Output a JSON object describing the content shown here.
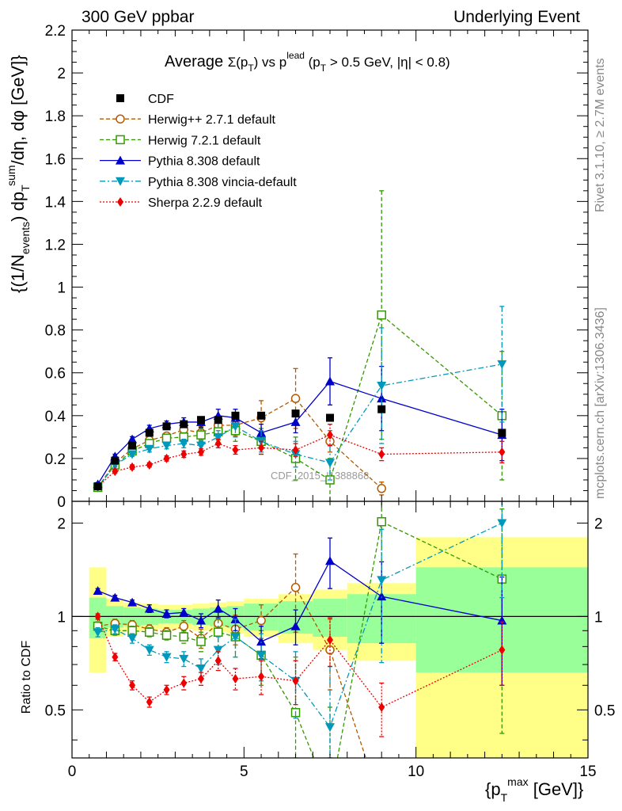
{
  "header": {
    "left": "300 GeV ppbar",
    "right": "Underlying Event"
  },
  "plot_title": {
    "main": "Average Σ(p_T) vs p_T^lead (p_T > 0.5 GeV, |η| < 0.8)",
    "prefix": "Average ",
    "sigma": "Σ(p",
    "sub_t": "T",
    "close": ")",
    "vs": " vs p",
    "sup_lead": "lead",
    "cond_open": " (p",
    "cond_rest": " > 0.5 GeV, |η| < 0.8)"
  },
  "watermark": "CDF_2015_I1388868",
  "side_labels": {
    "rivet": "Rivet 3.1.10, ≥ 2.7M events",
    "mcplots": "mcplots.cern.ch [arXiv:1306.3436]"
  },
  "axis_text": {
    "y_top": "{(1/N_events) dp_T^sum/dη, dφ [GeV]}",
    "y_top_parts": [
      "{(1/N",
      "events",
      ") dp",
      "T",
      "sum",
      "/dη, dφ [GeV]}"
    ],
    "y_bottom": "Ratio to CDF",
    "x": "{p_T^max [GeV]}",
    "x_parts": [
      "{p",
      "T",
      "max",
      " [GeV]}"
    ]
  },
  "legend": [
    {
      "label": "CDF",
      "color": "#000000",
      "marker": "square-filled",
      "dash": "none"
    },
    {
      "label": "Herwig++ 2.7.1 default",
      "color": "#b35900",
      "marker": "circle-open",
      "dash": "dashed"
    },
    {
      "label": "Herwig 7.2.1 default",
      "color": "#339900",
      "marker": "square-open",
      "dash": "dashed"
    },
    {
      "label": "Pythia 8.308 default",
      "color": "#0000cc",
      "marker": "triangle-up",
      "dash": "solid"
    },
    {
      "label": "Pythia 8.308 vincia-default",
      "color": "#0099bb",
      "marker": "triangle-down",
      "dash": "dashdot"
    },
    {
      "label": "Sherpa 2.2.9 default",
      "color": "#ee0000",
      "marker": "diamond",
      "dash": "dotted"
    }
  ],
  "chart_data": {
    "type": "line",
    "x_range": [
      0,
      15
    ],
    "x_ticks": [
      "0",
      "5",
      "10",
      "15"
    ],
    "top_panel": {
      "ylim": [
        0,
        2.2
      ],
      "y_ticks": [
        "0",
        "0.2",
        "0.4",
        "0.6",
        "0.8",
        "1",
        "1.2",
        "1.4",
        "1.6",
        "1.8",
        "2",
        "2.2"
      ],
      "data_x": [
        0.75,
        1.25,
        1.75,
        2.25,
        2.75,
        3.25,
        3.75,
        4.25,
        4.75,
        5.5,
        6.5,
        7.5,
        9.0,
        12.5
      ],
      "data_y": [
        0.07,
        0.19,
        0.26,
        0.32,
        0.35,
        0.36,
        0.38,
        0.38,
        0.4,
        0.4,
        0.41,
        0.39,
        0.43,
        0.32
      ],
      "mc_series": [
        {
          "name": "Herwig++ 2.7.1 default",
          "x": [
            0.75,
            1.25,
            1.75,
            2.25,
            2.75,
            3.25,
            3.75,
            4.25,
            4.75,
            5.5,
            6.5,
            7.5,
            9.0
          ],
          "y": [
            0.065,
            0.18,
            0.245,
            0.285,
            0.305,
            0.335,
            0.32,
            0.355,
            0.355,
            0.39,
            0.48,
            0.28,
            0.06
          ],
          "err": [
            0.008,
            0.01,
            0.01,
            0.015,
            0.015,
            0.02,
            0.03,
            0.04,
            0.05,
            0.08,
            0.14,
            0.05,
            0.03
          ]
        },
        {
          "name": "Herwig 7.2.1 default",
          "x": [
            0.75,
            1.25,
            1.75,
            2.25,
            2.75,
            3.25,
            3.75,
            4.25,
            4.75,
            5.5,
            6.5,
            7.5,
            9.0,
            12.5
          ],
          "y": [
            0.065,
            0.17,
            0.235,
            0.27,
            0.295,
            0.3,
            0.31,
            0.325,
            0.33,
            0.28,
            0.2,
            0.1,
            0.87,
            0.4
          ],
          "err": [
            0.008,
            0.01,
            0.01,
            0.015,
            0.015,
            0.02,
            0.03,
            0.04,
            0.05,
            0.06,
            0.1,
            0.1,
            0.58,
            0.3
          ]
        },
        {
          "name": "Pythia 8.308 default",
          "x": [
            0.75,
            1.25,
            1.75,
            2.25,
            2.75,
            3.25,
            3.75,
            4.25,
            4.75,
            5.5,
            6.5,
            7.5,
            9.0,
            12.5
          ],
          "y": [
            0.08,
            0.21,
            0.29,
            0.34,
            0.36,
            0.37,
            0.37,
            0.4,
            0.39,
            0.32,
            0.37,
            0.56,
            0.48,
            0.31
          ],
          "err": [
            0.008,
            0.01,
            0.012,
            0.015,
            0.015,
            0.02,
            0.025,
            0.03,
            0.04,
            0.04,
            0.05,
            0.11,
            0.15,
            0.12
          ]
        },
        {
          "name": "Pythia 8.308 vincia-default",
          "x": [
            0.75,
            1.25,
            1.75,
            2.25,
            2.75,
            3.25,
            3.75,
            4.25,
            4.75,
            5.5,
            6.5,
            7.5,
            9.0,
            12.5
          ],
          "y": [
            0.065,
            0.17,
            0.22,
            0.245,
            0.26,
            0.27,
            0.26,
            0.3,
            0.35,
            0.28,
            0.22,
            0.18,
            0.54,
            0.64
          ],
          "err": [
            0.008,
            0.01,
            0.01,
            0.015,
            0.015,
            0.02,
            0.025,
            0.03,
            0.05,
            0.05,
            0.06,
            0.08,
            0.27,
            0.27
          ]
        },
        {
          "name": "Sherpa 2.2.9 default",
          "x": [
            0.75,
            1.25,
            1.75,
            2.25,
            2.75,
            3.25,
            3.75,
            4.25,
            4.75,
            5.5,
            6.5,
            7.5,
            9.0,
            12.5
          ],
          "y": [
            0.07,
            0.14,
            0.16,
            0.17,
            0.2,
            0.22,
            0.23,
            0.27,
            0.24,
            0.25,
            0.24,
            0.31,
            0.22,
            0.23
          ],
          "err": [
            0.006,
            0.008,
            0.01,
            0.01,
            0.012,
            0.015,
            0.015,
            0.02,
            0.02,
            0.03,
            0.03,
            0.05,
            0.03,
            0.05
          ]
        }
      ]
    },
    "ratio_panel": {
      "ylim": [
        0.35,
        2.35
      ],
      "y_ticks": [
        "0.5",
        "1",
        "2"
      ],
      "band_edges": [
        0.5,
        1,
        1.5,
        2,
        2.5,
        3,
        3.5,
        4,
        4.5,
        5,
        6,
        7,
        8,
        10,
        15
      ],
      "band_inner_lo": [
        0.85,
        0.92,
        0.93,
        0.94,
        0.95,
        0.95,
        0.94,
        0.93,
        0.92,
        0.9,
        0.88,
        0.86,
        0.82,
        0.66
      ],
      "band_inner_hi": [
        1.15,
        1.08,
        1.07,
        1.06,
        1.05,
        1.05,
        1.06,
        1.07,
        1.08,
        1.1,
        1.12,
        1.14,
        1.18,
        1.44
      ],
      "band_outer_lo": [
        0.66,
        0.86,
        0.89,
        0.9,
        0.91,
        0.91,
        0.9,
        0.89,
        0.88,
        0.86,
        0.82,
        0.78,
        0.72,
        0.33
      ],
      "band_outer_hi": [
        1.44,
        1.14,
        1.11,
        1.1,
        1.09,
        1.09,
        1.1,
        1.11,
        1.12,
        1.14,
        1.18,
        1.22,
        1.28,
        1.8
      ],
      "series": [
        {
          "name": "Herwig++ 2.7.1 default",
          "x": [
            0.75,
            1.25,
            1.75,
            2.25,
            2.75,
            3.25,
            3.75,
            4.25,
            4.75,
            5.5,
            6.5,
            7.5,
            9.0
          ],
          "y": [
            0.93,
            0.95,
            0.94,
            0.91,
            0.89,
            0.93,
            0.85,
            0.95,
            0.91,
            0.97,
            1.24,
            0.78,
            0.15
          ],
          "err": [
            0.03,
            0.03,
            0.03,
            0.03,
            0.03,
            0.04,
            0.06,
            0.08,
            0.1,
            0.12,
            0.35,
            0.2,
            0.1
          ]
        },
        {
          "name": "Herwig 7.2.1 default",
          "x": [
            0.75,
            1.25,
            1.75,
            2.25,
            2.75,
            3.25,
            3.75,
            4.25,
            4.75,
            5.5,
            6.5,
            7.5,
            9.0,
            12.5
          ],
          "y": [
            0.93,
            0.9,
            0.9,
            0.89,
            0.87,
            0.86,
            0.83,
            0.89,
            0.86,
            0.75,
            0.49,
            0.26,
            2.02,
            1.32
          ],
          "err": [
            0.03,
            0.03,
            0.03,
            0.03,
            0.03,
            0.04,
            0.06,
            0.09,
            0.12,
            0.15,
            0.25,
            0.25,
            1.2,
            0.9
          ]
        },
        {
          "name": "Pythia 8.308 default",
          "x": [
            0.75,
            1.25,
            1.75,
            2.25,
            2.75,
            3.25,
            3.75,
            4.25,
            4.75,
            5.5,
            6.5,
            7.5,
            9.0,
            12.5
          ],
          "y": [
            1.21,
            1.15,
            1.11,
            1.06,
            1.02,
            1.03,
            0.97,
            1.06,
            0.98,
            0.83,
            0.93,
            1.51,
            1.16,
            0.97
          ],
          "err": [
            0.02,
            0.02,
            0.02,
            0.03,
            0.03,
            0.03,
            0.05,
            0.07,
            0.08,
            0.1,
            0.12,
            0.28,
            0.34,
            0.37
          ]
        },
        {
          "name": "Pythia 8.308 vincia-default",
          "x": [
            0.75,
            1.25,
            1.75,
            2.25,
            2.75,
            3.25,
            3.75,
            4.25,
            4.75,
            5.5,
            6.5,
            7.5,
            9.0,
            12.5
          ],
          "y": [
            0.89,
            0.91,
            0.85,
            0.78,
            0.74,
            0.73,
            0.68,
            0.78,
            0.86,
            0.75,
            0.62,
            0.44,
            1.31,
            2.0
          ],
          "err": [
            0.03,
            0.03,
            0.03,
            0.03,
            0.03,
            0.04,
            0.05,
            0.08,
            0.12,
            0.13,
            0.15,
            0.25,
            0.6,
            0.85
          ]
        },
        {
          "name": "Sherpa 2.2.9 default",
          "x": [
            0.75,
            1.25,
            1.75,
            2.25,
            2.75,
            3.25,
            3.75,
            4.25,
            4.75,
            5.5,
            6.5,
            7.5,
            9.0,
            12.5
          ],
          "y": [
            1.0,
            0.74,
            0.6,
            0.53,
            0.58,
            0.61,
            0.63,
            0.72,
            0.63,
            0.64,
            0.62,
            0.84,
            0.51,
            0.78
          ],
          "err": [
            0.02,
            0.02,
            0.02,
            0.02,
            0.02,
            0.03,
            0.03,
            0.05,
            0.05,
            0.08,
            0.1,
            0.15,
            0.1,
            0.18
          ]
        }
      ]
    }
  }
}
